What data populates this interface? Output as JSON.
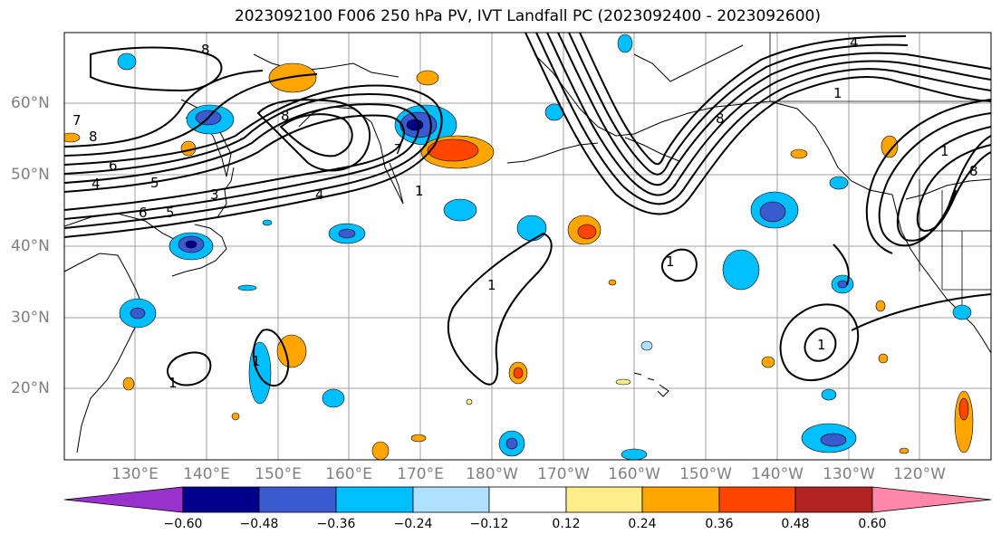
{
  "title": "2023092100 F006 250 hPa PV, IVT Landfall PC (2023092400 - 2023092600)",
  "lat_labels": [
    "60°N",
    "50°N",
    "40°N",
    "30°N",
    "20°N"
  ],
  "lon_labels": [
    "130°E",
    "140°E",
    "150°E",
    "160°E",
    "170°E",
    "180°W",
    "170°W",
    "160°W",
    "150°W",
    "140°W",
    "130°W",
    "120°W"
  ],
  "colorbar": {
    "ticks": [
      "−0.60",
      "−0.48",
      "−0.36",
      "−0.24",
      "−0.12",
      "0.12",
      "0.24",
      "0.36",
      "0.48",
      "0.60"
    ],
    "colors": [
      "#9932cc",
      "#00008b",
      "#3a5bd0",
      "#00bfff",
      "#b0e0ff",
      "#ffffff",
      "#ffec8b",
      "#ffa500",
      "#ff4500",
      "#b22222",
      "#ff88aa"
    ]
  },
  "contour_labels": [
    "1",
    "1",
    "1",
    "1",
    "1",
    "1",
    "1",
    "1",
    "4",
    "4",
    "4",
    "5",
    "5",
    "6",
    "6",
    "7",
    "7",
    "8",
    "8",
    "8",
    "8",
    "8",
    "3"
  ]
}
